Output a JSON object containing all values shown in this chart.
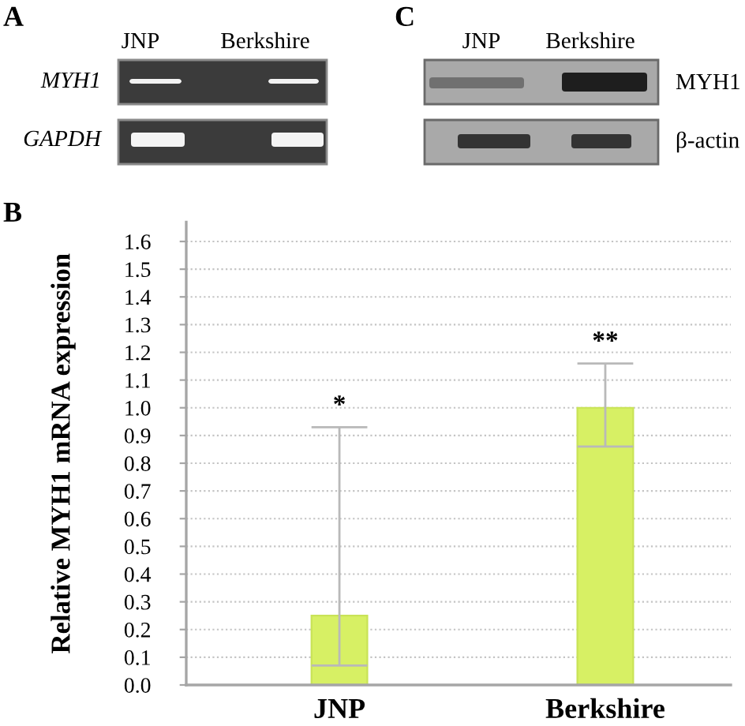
{
  "chart_data": [
    {
      "type": "other",
      "title": "A",
      "annotations": [
        "JNP",
        "Berkshire",
        "MYH1",
        "GAPDH"
      ]
    },
    {
      "type": "other",
      "title": "C",
      "annotations": [
        "JNP",
        "Berkshire",
        "MYH1",
        "β-actin"
      ]
    },
    {
      "type": "bar",
      "title": "B",
      "categories": [
        "JNP",
        "Berkshire"
      ],
      "values": [
        0.25,
        1.0
      ],
      "errors": [
        [
          0.07,
          0.93
        ],
        [
          0.86,
          1.16
        ]
      ],
      "color": "#d7f064",
      "ylabel": "Relative MYH1 mRNA expression",
      "ylim": [
        0,
        1.67
      ],
      "yticks": [
        {
          "value": 0,
          "label": "0.0"
        },
        0.1,
        0.2,
        0.3,
        0.4,
        0.5,
        0.6,
        0.7,
        0.8,
        0.9,
        {
          "value": 1,
          "label": "1.0"
        },
        1.1,
        1.2,
        1.3,
        1.4,
        1.5,
        1.6
      ],
      "grid": "y",
      "annotations": [
        "*",
        "**"
      ]
    }
  ]
}
